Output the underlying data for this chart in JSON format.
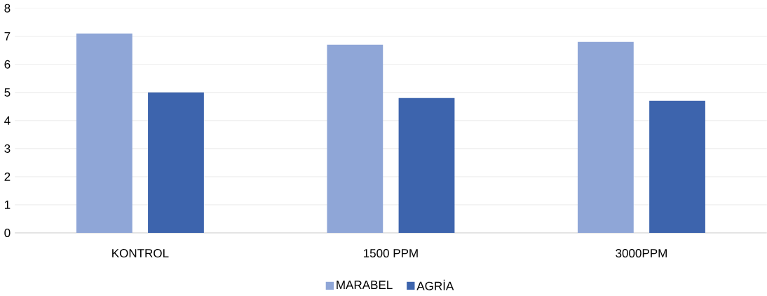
{
  "chart_data": {
    "type": "bar",
    "categories": [
      "KONTROL",
      "1500 PPM",
      "3000PPM"
    ],
    "series": [
      {
        "name": "MARABEL",
        "color": "#8fa6d7",
        "values": [
          7.1,
          6.7,
          6.8
        ]
      },
      {
        "name": "AGRİA",
        "color": "#3d64ad",
        "values": [
          5.0,
          4.8,
          4.7
        ]
      }
    ],
    "ylim": [
      0,
      8
    ],
    "yticks": [
      0,
      1,
      2,
      3,
      4,
      5,
      6,
      7,
      8
    ],
    "grid": "y",
    "legend": "bottom"
  }
}
